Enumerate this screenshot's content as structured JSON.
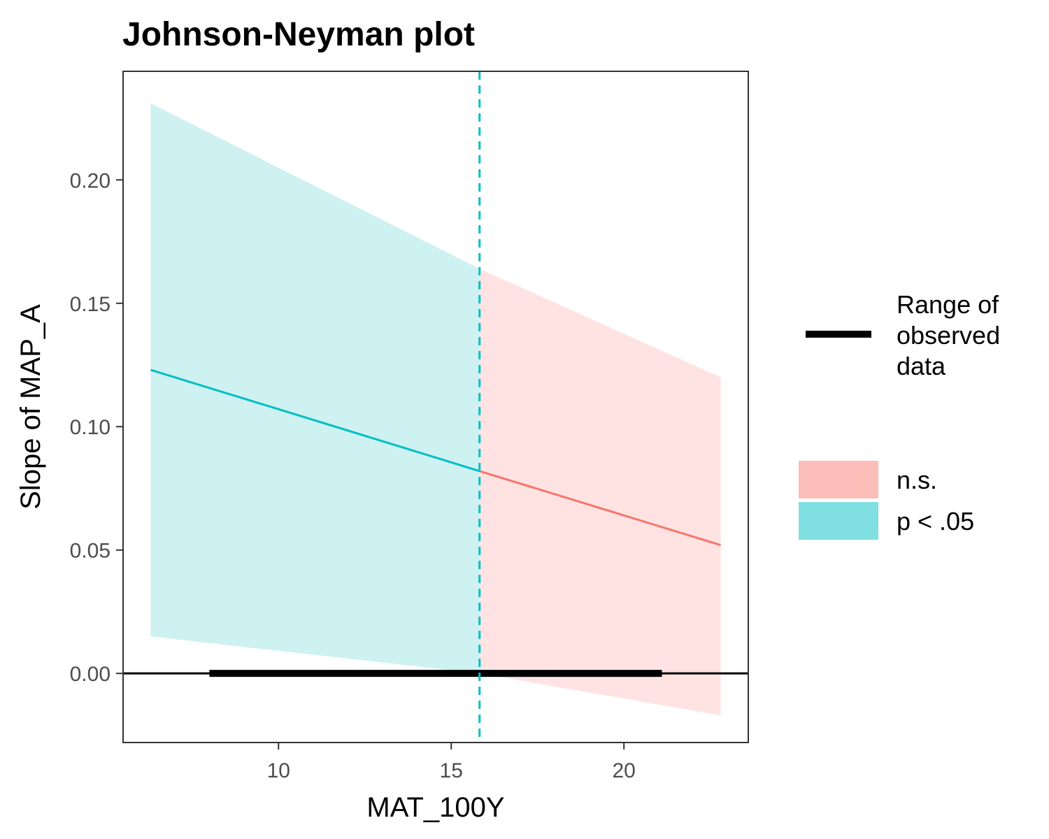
{
  "chart_data": {
    "type": "line",
    "title": "Johnson-Neyman plot",
    "xlabel": "MAT_100Y",
    "ylabel": "Slope of MAP_A",
    "xlim": [
      5.5,
      23.6
    ],
    "ylim": [
      -0.028,
      0.244
    ],
    "x_ticks": [
      10,
      15,
      20
    ],
    "y_ticks": [
      0.0,
      0.05,
      0.1,
      0.15,
      0.2
    ],
    "x_tick_labels": [
      "10",
      "15",
      "20"
    ],
    "y_tick_labels": [
      "0.00",
      "0.05",
      "0.10",
      "0.15",
      "0.20"
    ],
    "grid": false,
    "legend_position": "right",
    "johnson_neyman_point": 15.82,
    "series": [
      {
        "name": "p < .05",
        "x": [
          6.3,
          15.82
        ],
        "y": [
          0.123,
          0.082
        ],
        "lower": [
          0.015,
          0.0
        ],
        "upper": [
          0.231,
          0.164
        ]
      },
      {
        "name": "n.s.",
        "x": [
          15.82,
          22.8
        ],
        "y": [
          0.082,
          0.052
        ],
        "lower": [
          0.0,
          -0.017
        ],
        "upper": [
          0.164,
          0.12
        ]
      }
    ],
    "observed_range": [
      8.0,
      21.1
    ],
    "legend": {
      "range_label_lines": [
        "Range of",
        "observed",
        "data"
      ],
      "items": [
        "n.s.",
        "p < .05"
      ]
    },
    "colors": {
      "sig_line": "#00BFC4",
      "sig_fill": "#CEF1F2",
      "ns_line": "#F8766D",
      "ns_fill": "#FFE3E3",
      "legend_ns": "#FBBEB9",
      "legend_sig": "#80DFE1",
      "zero_line": "#000000",
      "panel_border": "#333333"
    }
  }
}
